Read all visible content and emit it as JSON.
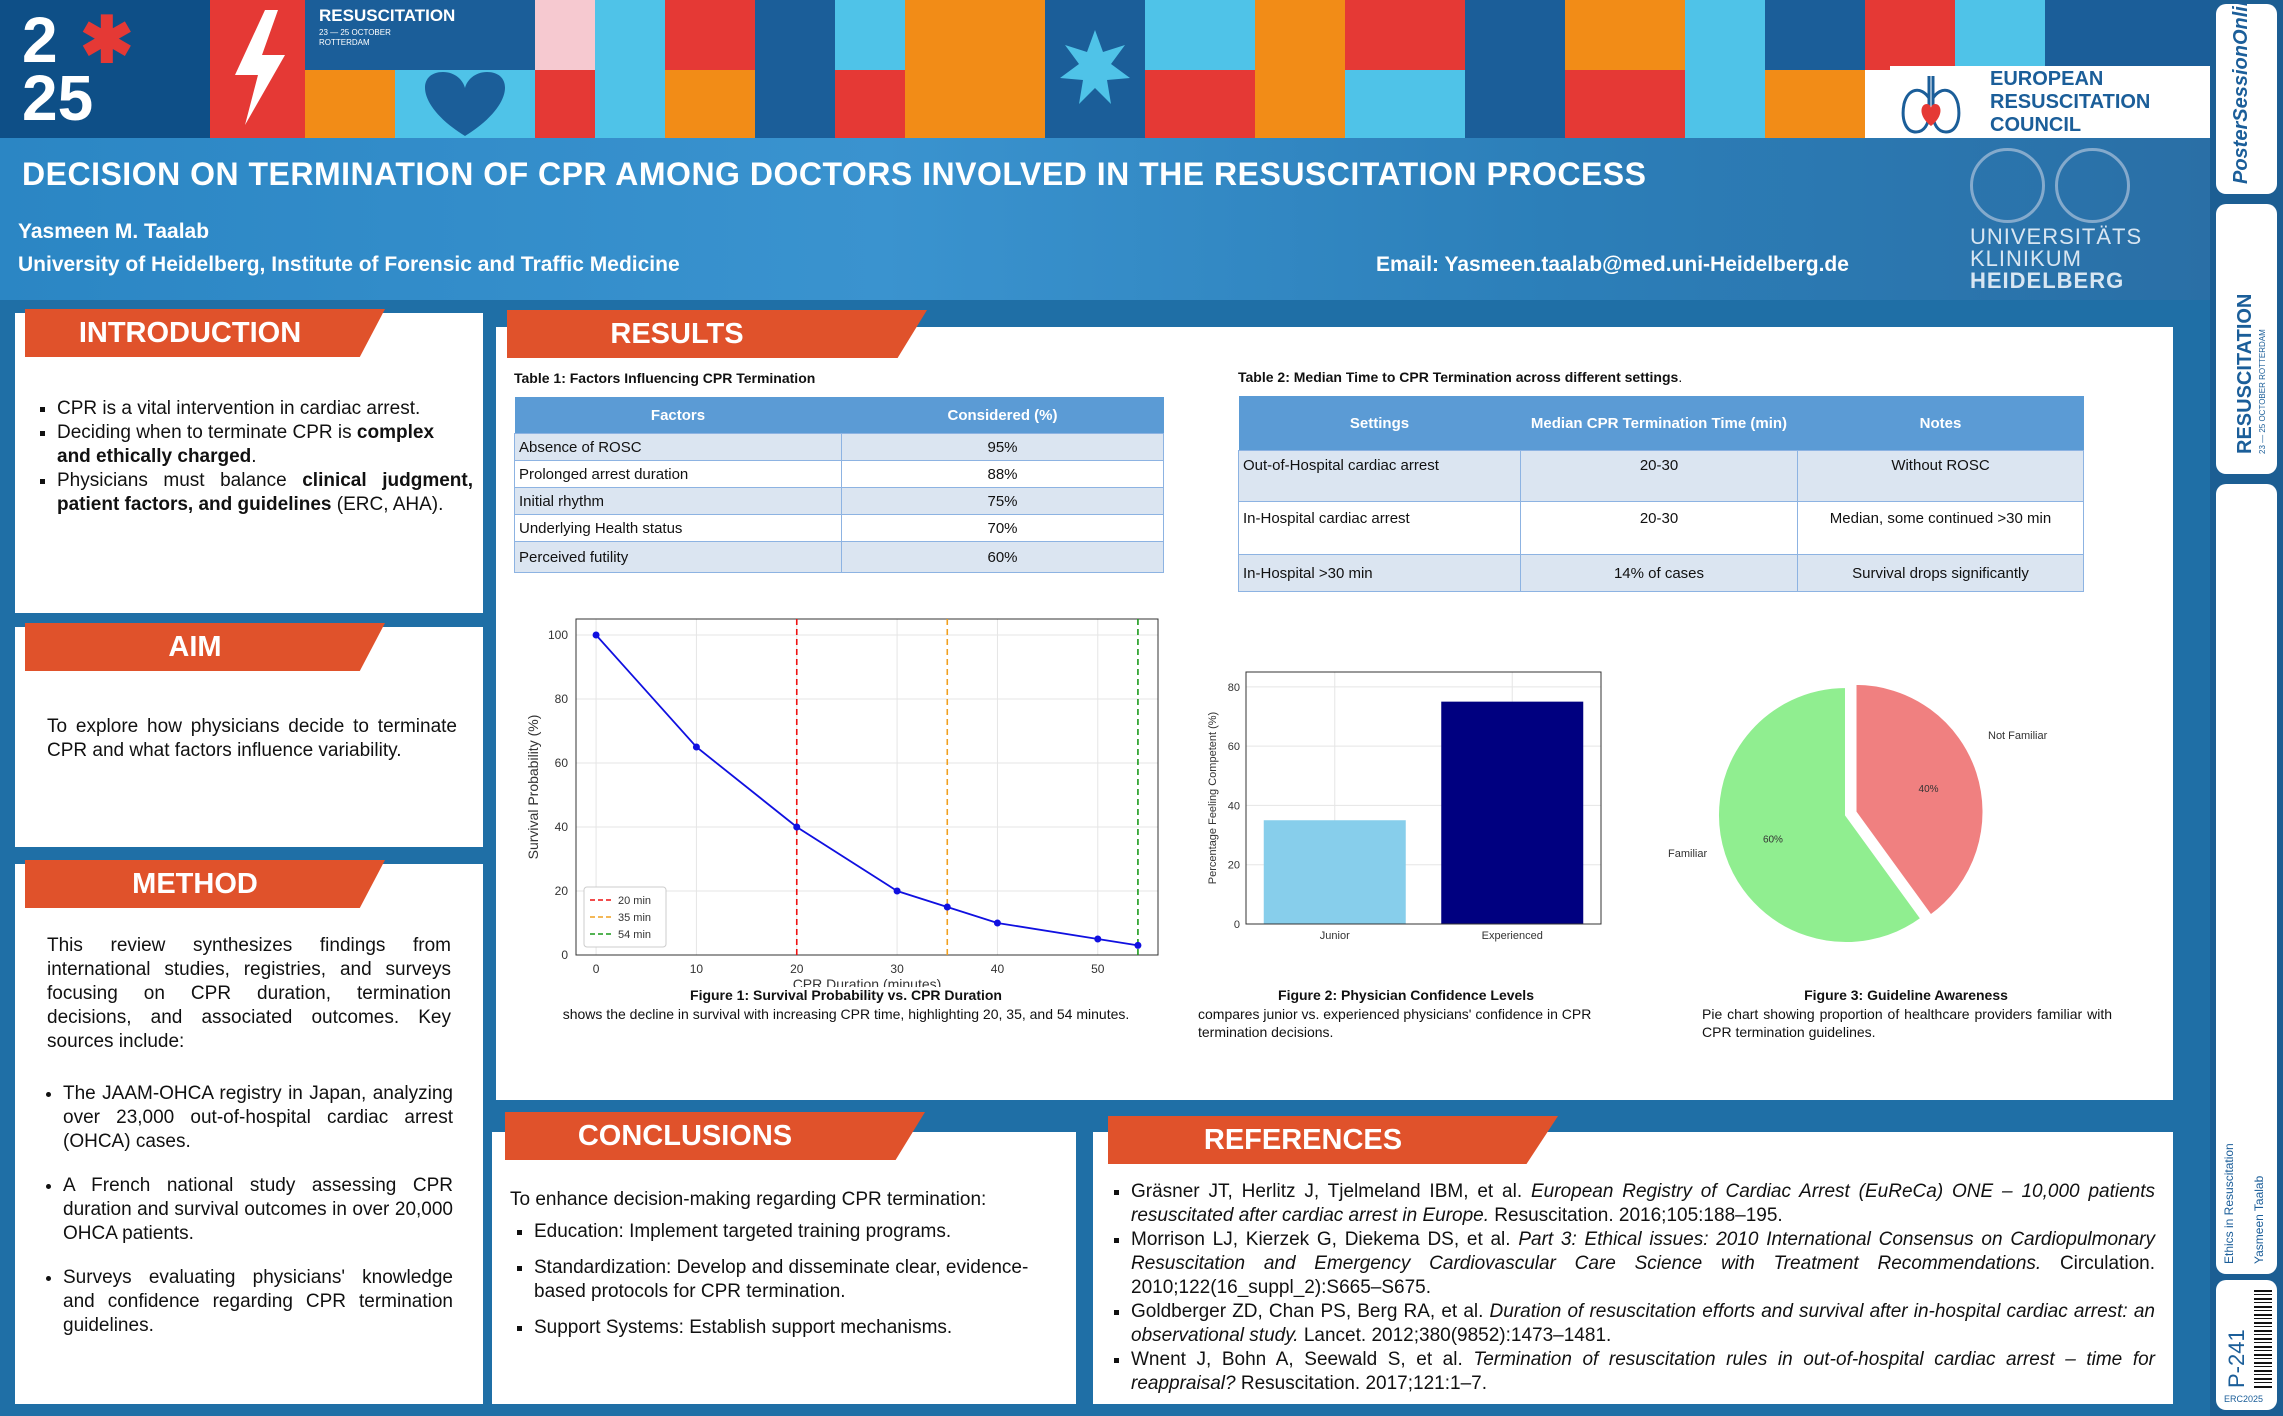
{
  "header": {
    "badge_year_top": "2",
    "badge_year_bottom": "25",
    "badge_text": "RESUSCITATION",
    "badge_sub": "23 — 25 OCTOBER\nROTTERDAM",
    "title": "DECISION ON TERMINATION OF CPR AMONG DOCTORS INVOLVED IN THE RESUSCITATION PROCESS",
    "author": "Yasmeen M. Taalab",
    "affiliation": "University of Heidelberg, Institute of Forensic and Traffic Medicine",
    "email": "Email: Yasmeen.taalab@med.uni-Heidelberg.de",
    "erc_line1": "EUROPEAN",
    "erc_line2": "RESUSCITATION",
    "erc_line3": "COUNCIL",
    "uni_line1": "UNIVERSITÄTS",
    "uni_line2": "KLINIKUM",
    "uni_line3": "HEIDELBERG"
  },
  "colors": {
    "accent": "#e0522b",
    "header_blue": "#2b86c4",
    "table_head": "#5b9bd5",
    "table_alt": "#dbe5f1"
  },
  "side": {
    "poster_label": "PosterSessionOnline",
    "res_label": "RESUSCITATION",
    "res_sub": "23 — 25 OCTOBER ROTTERDAM",
    "topic": "Ethics in Resuscitation",
    "author": "Yasmeen Taalab",
    "poster_no": "P-241",
    "conf": "ERC2025"
  },
  "introduction": {
    "heading": "INTRODUCTION",
    "b1": "CPR is a vital intervention in cardiac arrest.",
    "b2_pre": "Deciding when to terminate CPR is ",
    "b2_bold": "complex and ethically charged",
    "b2_post": ".",
    "b3_pre": "Physicians must balance ",
    "b3_bold": "clinical judgment, patient factors, and guidelines",
    "b3_post": " (ERC, AHA)."
  },
  "aim": {
    "heading": "AIM",
    "text": "To explore how physicians decide to terminate CPR and what factors influence variability."
  },
  "method": {
    "heading": "METHOD",
    "text": "This review synthesizes findings from international studies, registries, and surveys focusing on CPR duration, termination decisions, and associated outcomes. Key sources include:",
    "items": [
      "The JAAM-OHCA registry in Japan, analyzing over 23,000 out-of-hospital cardiac arrest (OHCA) cases.",
      "A French national study assessing CPR duration and survival outcomes in over 20,000 OHCA patients.",
      "Surveys evaluating physicians' knowledge and confidence regarding CPR termination guidelines."
    ]
  },
  "results": {
    "heading": "RESULTS",
    "table1": {
      "caption": "Table 1: Factors Influencing CPR Termination",
      "headers": [
        "Factors",
        "Considered (%)"
      ],
      "rows": [
        [
          "Absence of ROSC",
          "95%"
        ],
        [
          "Prolonged arrest duration",
          "88%"
        ],
        [
          "Initial rhythm",
          "75%"
        ],
        [
          "Underlying Health status",
          "70%"
        ],
        [
          "Perceived futility",
          "60%"
        ]
      ]
    },
    "table2": {
      "caption": "Table 2: Median Time to CPR Termination across different settings",
      "caption_post": ".",
      "headers": [
        "Settings",
        "Median CPR Termination Time (min)",
        "Notes"
      ],
      "rows": [
        [
          "Out-of-Hospital cardiac arrest",
          "20-30",
          "Without ROSC"
        ],
        [
          "In-Hospital cardiac arrest",
          "20-30",
          "Median, some continued >30 min"
        ],
        [
          "In-Hospital >30 min",
          "14% of cases",
          "Survival drops significantly"
        ]
      ]
    },
    "fig1": {
      "caption": "Figure 1: Survival Probability vs. CPR Duration",
      "desc": "shows the decline in survival with increasing CPR time, highlighting 20, 35, and 54 minutes."
    },
    "fig2": {
      "caption": "Figure 2: Physician Confidence Levels",
      "desc": "compares junior vs. experienced physicians' confidence in CPR termination decisions."
    },
    "fig3": {
      "caption": "Figure 3: Guideline Awareness",
      "desc": "Pie chart showing proportion of healthcare providers familiar with CPR termination guidelines."
    }
  },
  "conclusions": {
    "heading": "CONCLUSIONS",
    "intro": "To enhance decision-making regarding CPR termination:",
    "items": [
      "Education: Implement targeted training programs.",
      "Standardization: Develop and disseminate clear, evidence-based protocols for CPR termination.",
      "Support Systems: Establish support mechanisms."
    ]
  },
  "references": {
    "heading": "REFERENCES",
    "items": [
      {
        "a": "Gräsner JT, Herlitz J, Tjelmeland IBM, et al. ",
        "t": "European Registry of Cardiac Arrest (EuReCa) ONE – 10,000 patients resuscitated after cardiac arrest in Europe.",
        "s": " Resuscitation. 2016;105:188–195."
      },
      {
        "a": "Morrison LJ, Kierzek G, Diekema DS, et al. ",
        "t": "Part 3: Ethical issues: 2010 International Consensus on Cardiopulmonary Resuscitation and Emergency Cardiovascular Care Science with Treatment Recommendations.",
        "s": " Circulation. 2010;122(16_suppl_2):S665–S675."
      },
      {
        "a": "Goldberger ZD, Chan PS, Berg RA, et al. ",
        "t": "Duration of resuscitation efforts and survival after in-hospital cardiac arrest: an observational study.",
        "s": " Lancet. 2012;380(9852):1473–1481."
      },
      {
        "a": "Wnent J, Bohn A, Seewald S, et al. ",
        "t": "Termination of resuscitation rules in out-of-hospital cardiac arrest – time for reappraisal?",
        "s": " Resuscitation. 2017;121:1–7."
      }
    ]
  },
  "chart_data": [
    {
      "type": "line",
      "xlabel": "CPR Duration (minutes)",
      "ylabel": "Survival Probability (%)",
      "x": [
        0,
        10,
        20,
        30,
        35,
        40,
        50,
        54
      ],
      "values": [
        100,
        65,
        40,
        20,
        15,
        10,
        5,
        3
      ],
      "xlim": [
        -2,
        56
      ],
      "ylim": [
        0,
        105
      ],
      "xticks": [
        0,
        10,
        20,
        30,
        40,
        50
      ],
      "yticks": [
        0,
        20,
        40,
        60,
        80,
        100
      ],
      "grid": true,
      "line_color": "#1010e0",
      "vlines": [
        {
          "x": 20,
          "label": "20 min",
          "color": "#e11"
        },
        {
          "x": 35,
          "label": "35 min",
          "color": "#f0a020"
        },
        {
          "x": 54,
          "label": "54 min",
          "color": "#1a9a1a"
        }
      ],
      "legend": "lower-left"
    },
    {
      "type": "bar",
      "categories": [
        "Junior",
        "Experienced"
      ],
      "values": [
        35,
        75
      ],
      "colors": [
        "#87ceeb",
        "#000080"
      ],
      "xlabel": "",
      "ylabel": "Percentage Feeling Competent (%)",
      "ylim": [
        0,
        85
      ],
      "yticks": [
        0,
        20,
        40,
        60,
        80
      ],
      "grid": true
    },
    {
      "type": "pie",
      "labels": [
        "Familiar",
        "Not Familiar"
      ],
      "values": [
        60,
        40
      ],
      "value_labels": [
        "60%",
        "40%"
      ],
      "colors": [
        "#90ee90",
        "#f08080"
      ],
      "exploded": "Not Familiar"
    }
  ]
}
